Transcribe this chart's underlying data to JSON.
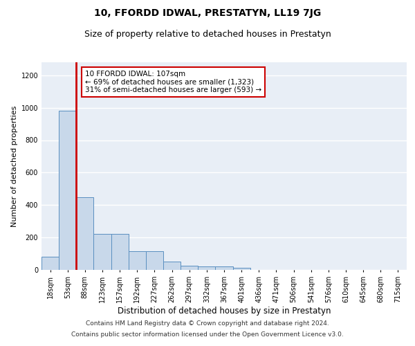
{
  "title": "10, FFORDD IDWAL, PRESTATYN, LL19 7JG",
  "subtitle": "Size of property relative to detached houses in Prestatyn",
  "xlabel": "Distribution of detached houses by size in Prestatyn",
  "ylabel": "Number of detached properties",
  "footnote1": "Contains HM Land Registry data © Crown copyright and database right 2024.",
  "footnote2": "Contains public sector information licensed under the Open Government Licence v3.0.",
  "annotation_line1": "10 FFORDD IDWAL: 107sqm",
  "annotation_line2": "← 69% of detached houses are smaller (1,323)",
  "annotation_line3": "31% of semi-detached houses are larger (593) →",
  "bin_labels": [
    "18sqm",
    "53sqm",
    "88sqm",
    "123sqm",
    "157sqm",
    "192sqm",
    "227sqm",
    "262sqm",
    "297sqm",
    "332sqm",
    "367sqm",
    "401sqm",
    "436sqm",
    "471sqm",
    "506sqm",
    "541sqm",
    "576sqm",
    "610sqm",
    "645sqm",
    "680sqm",
    "715sqm"
  ],
  "bar_heights": [
    80,
    980,
    450,
    220,
    220,
    115,
    115,
    50,
    25,
    22,
    20,
    14,
    0,
    0,
    0,
    0,
    0,
    0,
    0,
    0,
    0
  ],
  "bar_color": "#c8d8ea",
  "bar_edge_color": "#5a8fc0",
  "red_line_color": "#cc0000",
  "ylim": [
    0,
    1280
  ],
  "yticks": [
    0,
    200,
    400,
    600,
    800,
    1000,
    1200
  ],
  "background_color": "#e8eef6",
  "grid_color": "#ffffff",
  "annotation_box_color": "#ffffff",
  "annotation_box_edge": "#cc0000",
  "title_fontsize": 10,
  "subtitle_fontsize": 9,
  "xlabel_fontsize": 8.5,
  "ylabel_fontsize": 8,
  "tick_fontsize": 7,
  "annotation_fontsize": 7.5,
  "footnote_fontsize": 6.5
}
